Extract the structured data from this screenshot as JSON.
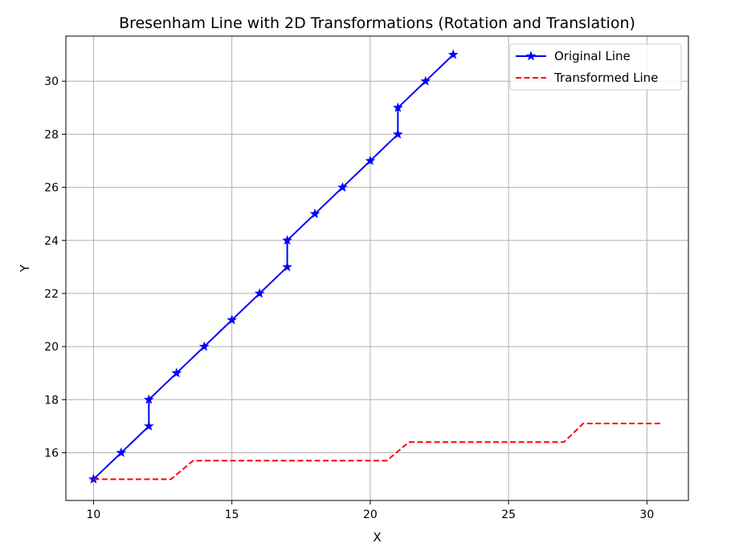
{
  "chart_data": {
    "type": "line",
    "title": "Bresenham Line with 2D Transformations (Rotation and Translation)",
    "xlabel": "X",
    "ylabel": "Y",
    "xlim": [
      9,
      31.5
    ],
    "ylim": [
      14.2,
      31.7
    ],
    "xticks": [
      10,
      15,
      20,
      25,
      30
    ],
    "yticks": [
      16,
      18,
      20,
      22,
      24,
      26,
      28,
      30
    ],
    "grid": true,
    "legend_position": "top-right",
    "series": [
      {
        "name": "Original Line",
        "style": "solid",
        "marker": "star",
        "color": "#0000ff",
        "x": [
          10,
          11,
          12,
          12,
          13,
          14,
          15,
          16,
          17,
          17,
          18,
          19,
          20,
          21,
          21,
          22,
          23
        ],
        "y": [
          15,
          16,
          17,
          18,
          19,
          20,
          21,
          22,
          23,
          24,
          25,
          26,
          27,
          28,
          29,
          30,
          31
        ]
      },
      {
        "name": "Transformed Line",
        "style": "dashed",
        "marker": "none",
        "color": "#ff0000",
        "x": [
          10,
          12.8,
          13.6,
          20.6,
          21.4,
          27.0,
          27.7,
          30.5
        ],
        "y": [
          15,
          15,
          15.7,
          15.7,
          16.4,
          16.4,
          17.1,
          17.1
        ]
      }
    ]
  }
}
